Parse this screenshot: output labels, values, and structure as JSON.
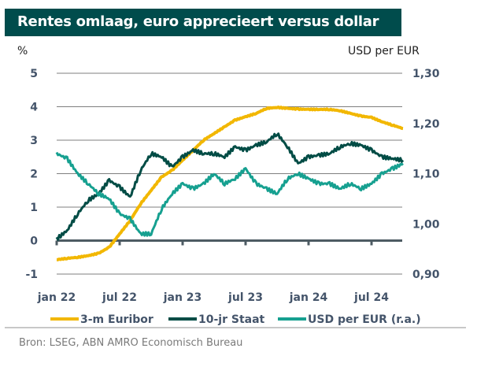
{
  "title": "Rentes omlaag, euro apprecieert versus dollar",
  "source": "Bron: LSEG, ABN AMRO Economisch Bureau",
  "chart_data": {
    "type": "line",
    "title": "Rentes omlaag, euro apprecieert versus dollar",
    "ylabel_left": "%",
    "ylabel_right": "USD per EUR",
    "ylim_left": [
      -1,
      5
    ],
    "ylim_right": [
      0.9,
      1.3
    ],
    "yticks_left": [
      "5",
      "4",
      "3",
      "2",
      "1",
      "0",
      "-1"
    ],
    "yticks_left_values": [
      5,
      4,
      3,
      2,
      1,
      0,
      -1
    ],
    "yticks_right": [
      "1,30",
      "1,20",
      "1,10",
      "1,00",
      "0,90"
    ],
    "yticks_right_values": [
      1.3,
      1.2,
      1.1,
      1.0,
      0.9
    ],
    "xticks": [
      "jan 22",
      "jul 22",
      "jan 23",
      "jul 23",
      "jan 24",
      "jul 24"
    ],
    "xtick_months": [
      0,
      6,
      12,
      18,
      24,
      30
    ],
    "x_months": [
      0,
      1,
      2,
      3,
      4,
      5,
      6,
      7,
      8,
      9,
      10,
      11,
      12,
      13,
      14,
      15,
      16,
      17,
      18,
      19,
      20,
      21,
      22,
      23,
      24,
      25,
      26,
      27,
      28,
      29,
      30,
      31,
      32,
      33
    ],
    "grid": true,
    "legend": "bottom",
    "colors": {
      "euribor": "#f2b700",
      "staat": "#004c45",
      "usd": "#16a090"
    },
    "series": [
      {
        "name": "3-m Euribor",
        "axis": "left",
        "color_key": "euribor",
        "values": [
          -0.57,
          -0.53,
          -0.5,
          -0.45,
          -0.38,
          -0.2,
          0.2,
          0.6,
          1.1,
          1.5,
          1.9,
          2.1,
          2.4,
          2.7,
          3.0,
          3.2,
          3.4,
          3.6,
          3.7,
          3.8,
          3.95,
          3.98,
          3.95,
          3.93,
          3.92,
          3.92,
          3.92,
          3.88,
          3.8,
          3.72,
          3.68,
          3.55,
          3.45,
          3.35
        ]
      },
      {
        "name": "10-jr Staat",
        "axis": "left",
        "color_key": "staat",
        "values": [
          0.05,
          0.3,
          0.8,
          1.2,
          1.4,
          1.8,
          1.6,
          1.3,
          2.1,
          2.6,
          2.5,
          2.2,
          2.5,
          2.7,
          2.6,
          2.6,
          2.5,
          2.8,
          2.7,
          2.85,
          2.95,
          3.2,
          2.8,
          2.3,
          2.5,
          2.55,
          2.6,
          2.8,
          2.9,
          2.85,
          2.7,
          2.5,
          2.45,
          2.4
        ]
      },
      {
        "name": "USD per EUR (r.a.)",
        "axis": "right",
        "color_key": "usd",
        "values": [
          1.14,
          1.13,
          1.1,
          1.08,
          1.06,
          1.05,
          1.02,
          1.01,
          0.98,
          0.98,
          1.03,
          1.06,
          1.08,
          1.07,
          1.08,
          1.1,
          1.08,
          1.09,
          1.11,
          1.08,
          1.07,
          1.06,
          1.09,
          1.1,
          1.09,
          1.08,
          1.08,
          1.07,
          1.08,
          1.07,
          1.08,
          1.1,
          1.11,
          1.12
        ]
      }
    ]
  }
}
